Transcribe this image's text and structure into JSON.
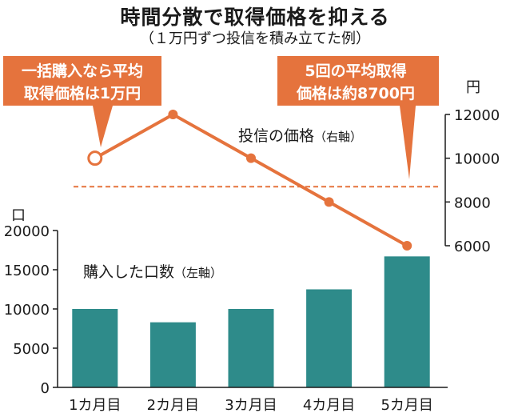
{
  "title": "時間分散で取得価格を抑える",
  "subtitle": "（１万円ずつ投信を積み立てた例）",
  "colors": {
    "bar": "#2e8b8a",
    "line": "#e5733d",
    "callout": "#e5733d",
    "average": "#e5733d"
  },
  "callouts": {
    "lump_sum": [
      "一括購入なら平均",
      "取得価格は1万円"
    ],
    "average": [
      "5回の平均取得",
      "価格は約8700円"
    ]
  },
  "axes": {
    "left_unit": "口",
    "right_unit": "円"
  },
  "labels": {
    "line_series": "投信の価格",
    "line_axis_note": "（右軸）",
    "bar_series": "購入した口数",
    "bar_axis_note": "（左軸）"
  },
  "chart_data": {
    "type": "bar",
    "categories": [
      "1カ月目",
      "2カ月目",
      "3カ月目",
      "4カ月目",
      "5カ月目"
    ],
    "left_axis": {
      "ticks": [
        0,
        5000,
        10000,
        15000,
        20000
      ],
      "ylim": [
        0,
        20000
      ]
    },
    "right_axis": {
      "ticks": [
        6000,
        8000,
        10000,
        12000
      ],
      "ylim": [
        6000,
        12000
      ]
    },
    "series": [
      {
        "name": "購入した口数",
        "axis": "left",
        "type": "bar",
        "values": [
          10000,
          8300,
          10000,
          12500,
          16700
        ]
      },
      {
        "name": "投信の価格",
        "axis": "right",
        "type": "line",
        "values": [
          10000,
          12000,
          10000,
          8000,
          6000
        ]
      }
    ],
    "reference_line": {
      "axis": "right",
      "value": 8700
    }
  }
}
